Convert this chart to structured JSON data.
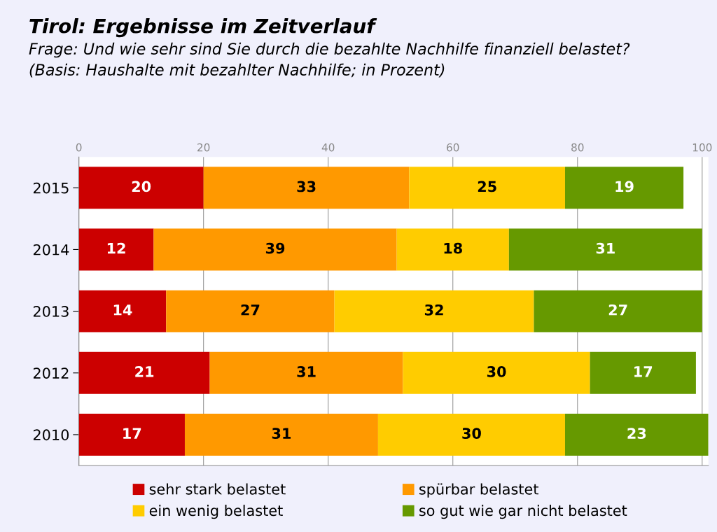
{
  "chart_data": {
    "type": "bar",
    "orientation": "horizontal",
    "stacked": true,
    "title": "Tirol: Ergebnisse im Zeitverlauf",
    "subtitle": "Frage: Und wie sehr sind Sie durch die bezahlte Nachhilfe finanziell belastet?\n(Basis: Haushalte mit bezahlter Nachhilfe; in Prozent)",
    "categories": [
      "2015",
      "2014",
      "2013",
      "2012",
      "2010"
    ],
    "series": [
      {
        "name": "sehr stark belastet",
        "color": "#cc0000",
        "values": [
          20,
          12,
          14,
          21,
          17
        ]
      },
      {
        "name": "spürbar belastet",
        "color": "#ff9900",
        "values": [
          33,
          39,
          27,
          31,
          31
        ]
      },
      {
        "name": "ein wenig belastet",
        "color": "#ffcc00",
        "values": [
          25,
          18,
          32,
          30,
          30
        ]
      },
      {
        "name": "so gut wie gar nicht belastet",
        "color": "#669900",
        "values": [
          19,
          31,
          27,
          17,
          23
        ]
      }
    ],
    "xlim": [
      0,
      101
    ],
    "xticks": [
      0,
      20,
      40,
      60,
      80,
      100
    ],
    "grid": "x",
    "legend": "bottom",
    "data_labels": true
  }
}
